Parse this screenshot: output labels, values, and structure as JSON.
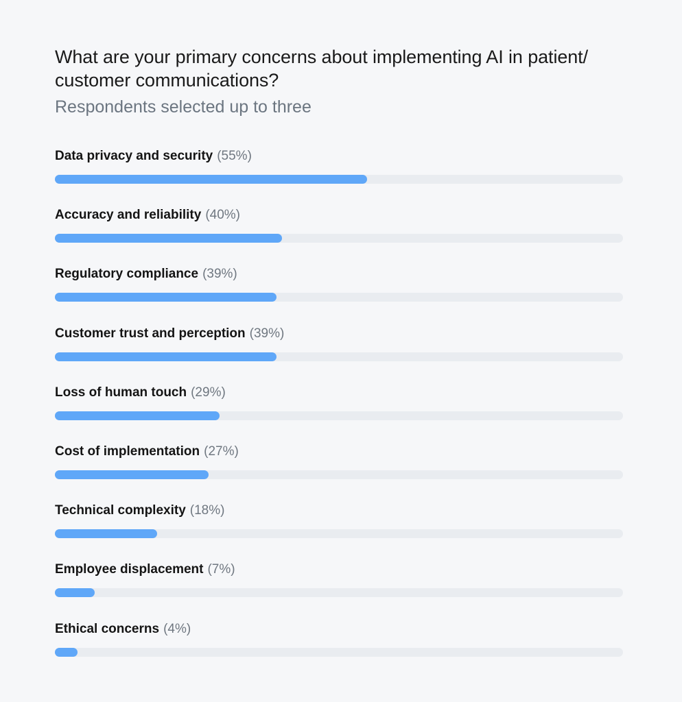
{
  "chart_data": {
    "type": "bar",
    "orientation": "horizontal",
    "title": "What are your primary concerns about implementing AI in patient/ customer communications?",
    "subtitle": "Respondents selected up to three",
    "categories": [
      "Data privacy and security",
      "Accuracy and reliability",
      "Regulatory compliance",
      "Customer trust and perception",
      "Loss of human touch",
      "Cost of implementation",
      "Technical complexity",
      "Employee displacement",
      "Ethical concerns"
    ],
    "values": [
      55,
      40,
      39,
      39,
      29,
      27,
      18,
      7,
      4
    ],
    "value_labels": [
      "(55%)",
      "(40%)",
      "(39%)",
      "(39%)",
      "(29%)",
      "(27%)",
      "(18%)",
      "(7%)",
      "(4%)"
    ],
    "xlim": [
      0,
      100
    ],
    "grid": false,
    "colors": {
      "bar": "#5fa7f8",
      "track": "#e9ecf0",
      "background": "#f6f7f9"
    }
  }
}
